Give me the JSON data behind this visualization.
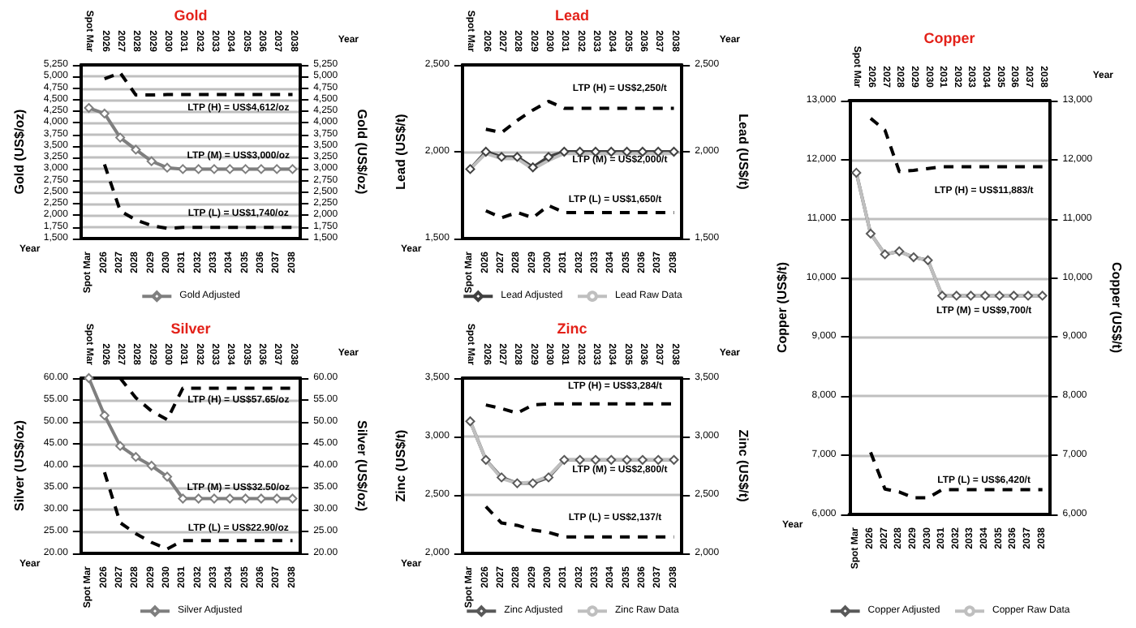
{
  "chart_data": [
    {
      "type": "line",
      "title": "Gold",
      "xlabel": "Year",
      "ylabel": "Gold (US$/oz)",
      "y2label": "Gold (US$/oz)",
      "categories": [
        "Spot Mar",
        "2026",
        "2027",
        "2028",
        "2029",
        "2030",
        "2031",
        "2032",
        "2033",
        "2034",
        "2035",
        "2036",
        "2037",
        "2038"
      ],
      "series": [
        {
          "name": "Gold Adjusted",
          "color": "#7f7f7f",
          "marker": "diamond",
          "line_style": "solid",
          "values": [
            4320,
            4200,
            3680,
            3420,
            3170,
            3030,
            3000,
            3000,
            3000,
            3000,
            3000,
            3000,
            3000,
            3000
          ]
        },
        {
          "color": "#000000",
          "marker": "none",
          "line_style": "dashed",
          "values": [
            null,
            4950,
            5080,
            4600,
            4600,
            4610,
            4610,
            4610,
            4610,
            4610,
            4610,
            4610,
            4610,
            4610
          ]
        },
        {
          "color": "#000000",
          "marker": "none",
          "line_style": "dashed",
          "values": [
            null,
            3100,
            2100,
            1900,
            1780,
            1720,
            1740,
            1740,
            1740,
            1740,
            1740,
            1740,
            1740,
            1740
          ]
        }
      ],
      "ylim": [
        1500,
        5250
      ],
      "yticks": [
        {
          "value": 1500,
          "label": "1,500"
        },
        {
          "value": 1750,
          "label": "1,750"
        },
        {
          "value": 2000,
          "label": "2,000"
        },
        {
          "value": 2250,
          "label": "2,250"
        },
        {
          "value": 2500,
          "label": "2,500"
        },
        {
          "value": 2750,
          "label": "2,750"
        },
        {
          "value": 3000,
          "label": "3,000"
        },
        {
          "value": 3250,
          "label": "3,250"
        },
        {
          "value": 3500,
          "label": "3,500"
        },
        {
          "value": 3750,
          "label": "3,750"
        },
        {
          "value": 4000,
          "label": "4,000"
        },
        {
          "value": 4250,
          "label": "4,250"
        },
        {
          "value": 4500,
          "label": "4,500"
        },
        {
          "value": 4750,
          "label": "4,750"
        },
        {
          "value": 5000,
          "label": "5,000"
        },
        {
          "value": 5250,
          "label": "5,250"
        }
      ],
      "y2lim": [
        1500,
        5250
      ],
      "y2ticks": [
        {
          "value": 1500,
          "label": "1,500"
        },
        {
          "value": 1750,
          "label": "1,750"
        },
        {
          "value": 2000,
          "label": "2,000"
        },
        {
          "value": 2250,
          "label": "2,250"
        },
        {
          "value": 2500,
          "label": "2,500"
        },
        {
          "value": 2750,
          "label": "2,750"
        },
        {
          "value": 3000,
          "label": "3,000"
        },
        {
          "value": 3250,
          "label": "3,250"
        },
        {
          "value": 3500,
          "label": "3,500"
        },
        {
          "value": 3750,
          "label": "3,750"
        },
        {
          "value": 4000,
          "label": "4,000"
        },
        {
          "value": 4250,
          "label": "4,250"
        },
        {
          "value": 4500,
          "label": "4,500"
        },
        {
          "value": 4750,
          "label": "4,750"
        },
        {
          "value": 5000,
          "label": "5,000"
        },
        {
          "value": 5250,
          "label": "5,250"
        }
      ],
      "annotations": [
        "LTP (H) = US$4,612/oz",
        "LTP (M) = US$3,000/oz",
        "LTP (L) = US$1,740/oz"
      ],
      "grid": "y",
      "legend": "bottom"
    },
    {
      "type": "line",
      "title": "Lead",
      "xlabel": "Year",
      "ylabel": "Lead (US$/t)",
      "y2label": "Lead (US$/t)",
      "categories": [
        "Spot Mar",
        "2026",
        "2027",
        "2028",
        "2029",
        "2030",
        "2031",
        "2032",
        "2033",
        "2034",
        "2035",
        "2036",
        "2037",
        "2038"
      ],
      "series": [
        {
          "name": "Lead Adjusted",
          "color": "#404040",
          "marker": "diamond",
          "line_style": "solid",
          "values": [
            1900,
            2000,
            1970,
            1970,
            1910,
            1970,
            2000,
            2000,
            2000,
            2000,
            2000,
            2000,
            2000,
            2000
          ]
        },
        {
          "name": "Lead Raw Data",
          "color": "#bfbfbf",
          "marker": "none",
          "line_style": "solid",
          "values": [
            1900,
            1990,
            1960,
            1960,
            1900,
            1950,
            1990,
            1990,
            1990,
            1990,
            1990,
            1990,
            1990,
            1990
          ]
        },
        {
          "color": "#000000",
          "marker": "none",
          "line_style": "dashed",
          "values": [
            null,
            2130,
            2110,
            2180,
            2240,
            2290,
            2250,
            2250,
            2250,
            2250,
            2250,
            2250,
            2250,
            2250
          ]
        },
        {
          "color": "#000000",
          "marker": "none",
          "line_style": "dashed",
          "values": [
            null,
            1660,
            1620,
            1650,
            1620,
            1690,
            1650,
            1650,
            1650,
            1650,
            1650,
            1650,
            1650,
            1650
          ]
        }
      ],
      "ylim": [
        1500,
        2500
      ],
      "yticks": [
        {
          "value": 1500,
          "label": "1,500"
        },
        {
          "value": 2000,
          "label": "2,000"
        },
        {
          "value": 2500,
          "label": "2,500"
        }
      ],
      "y2lim": [
        1500,
        2500
      ],
      "y2ticks": [
        {
          "value": 1500,
          "label": "1,500"
        },
        {
          "value": 2000,
          "label": "2,000"
        },
        {
          "value": 2500,
          "label": "2,500"
        }
      ],
      "annotations": [
        "LTP (H) = US$2,250/t",
        "LTP (M) = US$2,000/t",
        "LTP (L) = US$1,650/t"
      ],
      "grid": "y",
      "legend": "bottom"
    },
    {
      "type": "line",
      "title": "Copper",
      "xlabel": "Year",
      "ylabel": "Copper (US$/t)",
      "y2label": "Copper (US$/t)",
      "categories": [
        "Spot Mar",
        "2026",
        "2027",
        "2028",
        "2029",
        "2030",
        "2031",
        "2032",
        "2033",
        "2034",
        "2035",
        "2036",
        "2037",
        "2038"
      ],
      "series": [
        {
          "name": "Copper Adjusted",
          "color": "#595959",
          "marker": "diamond",
          "line_style": "solid",
          "values": [
            11780,
            10750,
            10400,
            10450,
            10350,
            10300,
            9700,
            9700,
            9700,
            9700,
            9700,
            9700,
            9700,
            9700
          ]
        },
        {
          "name": "Copper Raw Data",
          "color": "#bfbfbf",
          "marker": "none",
          "line_style": "solid",
          "values": [
            11780,
            10750,
            10400,
            10450,
            10350,
            10300,
            9700,
            9700,
            9700,
            9700,
            9700,
            9700,
            9700,
            9700
          ]
        },
        {
          "color": "#000000",
          "marker": "none",
          "line_style": "dashed",
          "values": [
            null,
            12700,
            12500,
            11800,
            11820,
            11850,
            11880,
            11880,
            11880,
            11880,
            11880,
            11880,
            11880,
            11880
          ]
        },
        {
          "color": "#000000",
          "marker": "none",
          "line_style": "dashed",
          "values": [
            null,
            7050,
            6430,
            6380,
            6280,
            6280,
            6420,
            6420,
            6420,
            6420,
            6420,
            6420,
            6420,
            6420
          ]
        }
      ],
      "ylim": [
        6000,
        13000
      ],
      "yticks": [
        {
          "value": 6000,
          "label": "6,000"
        },
        {
          "value": 7000,
          "label": "7,000"
        },
        {
          "value": 8000,
          "label": "8,000"
        },
        {
          "value": 9000,
          "label": "9,000"
        },
        {
          "value": 10000,
          "label": "10,000"
        },
        {
          "value": 11000,
          "label": "11,000"
        },
        {
          "value": 12000,
          "label": "12,000"
        },
        {
          "value": 13000,
          "label": "13,000"
        }
      ],
      "y2lim": [
        6000,
        13000
      ],
      "y2ticks": [
        {
          "value": 6000,
          "label": "6,000"
        },
        {
          "value": 7000,
          "label": "7,000"
        },
        {
          "value": 8000,
          "label": "8,000"
        },
        {
          "value": 9000,
          "label": "9,000"
        },
        {
          "value": 10000,
          "label": "10,000"
        },
        {
          "value": 11000,
          "label": "11,000"
        },
        {
          "value": 12000,
          "label": "12,000"
        },
        {
          "value": 13000,
          "label": "13,000"
        }
      ],
      "annotations": [
        "LTP (H) = US$11,883/t",
        "LTP (M) = US$9,700/t",
        "LTP (L) = US$6,420/t"
      ],
      "grid": "y",
      "legend": "bottom"
    },
    {
      "type": "line",
      "title": "Silver",
      "xlabel": "Year",
      "ylabel": "Silver (US$/oz)",
      "y2label": "Silver (US$/oz)",
      "categories": [
        "Spot Mar",
        "2026",
        "2027",
        "2028",
        "2029",
        "2030",
        "2031",
        "2032",
        "2033",
        "2034",
        "2035",
        "2036",
        "2037",
        "2038"
      ],
      "series": [
        {
          "name": "Silver Adjusted",
          "color": "#7f7f7f",
          "marker": "diamond",
          "line_style": "solid",
          "values": [
            60,
            51.5,
            44.5,
            42,
            40,
            37.5,
            32.5,
            32.5,
            32.5,
            32.5,
            32.5,
            32.5,
            32.5,
            32.5
          ]
        },
        {
          "color": "#000000",
          "marker": "none",
          "line_style": "dashed",
          "values": [
            null,
            null,
            60,
            55.5,
            52.5,
            50.5,
            57.7,
            57.7,
            57.7,
            57.7,
            57.7,
            57.7,
            57.7,
            57.7
          ]
        },
        {
          "color": "#000000",
          "marker": "none",
          "line_style": "dashed",
          "values": [
            null,
            38.5,
            27,
            24.5,
            22.5,
            21,
            22.9,
            22.9,
            22.9,
            22.9,
            22.9,
            22.9,
            22.9,
            22.9
          ]
        }
      ],
      "ylim": [
        20,
        60
      ],
      "yticks": [
        {
          "value": 20,
          "label": "20.00"
        },
        {
          "value": 25,
          "label": "25.00"
        },
        {
          "value": 30,
          "label": "30.00"
        },
        {
          "value": 35,
          "label": "35.00"
        },
        {
          "value": 40,
          "label": "40.00"
        },
        {
          "value": 45,
          "label": "45.00"
        },
        {
          "value": 50,
          "label": "50.00"
        },
        {
          "value": 55,
          "label": "55.00"
        },
        {
          "value": 60,
          "label": "60.00"
        }
      ],
      "y2lim": [
        20,
        60
      ],
      "y2ticks": [
        {
          "value": 20,
          "label": "20.00"
        },
        {
          "value": 25,
          "label": "25.00"
        },
        {
          "value": 30,
          "label": "30.00"
        },
        {
          "value": 35,
          "label": "35.00"
        },
        {
          "value": 40,
          "label": "40.00"
        },
        {
          "value": 45,
          "label": "45.00"
        },
        {
          "value": 50,
          "label": "50.00"
        },
        {
          "value": 55,
          "label": "55.00"
        },
        {
          "value": 60,
          "label": "60.00"
        }
      ],
      "annotations": [
        "LTP (H) = US$57.65/oz",
        "LTP (M) = US$32.50/oz",
        "LTP (L) = US$22.90/oz"
      ],
      "grid": "y",
      "legend": "bottom"
    },
    {
      "type": "line",
      "title": "Zinc",
      "xlabel": "Year",
      "ylabel": "Zinc (US$/t)",
      "y2label": "Zinc (US$/t)",
      "categories": [
        "Spot Mar",
        "2026",
        "2027",
        "2028",
        "2029",
        "2030",
        "2031",
        "2032",
        "2033",
        "2034",
        "2035",
        "2036",
        "2037",
        "2038"
      ],
      "series": [
        {
          "name": "Zinc Adjusted",
          "color": "#595959",
          "marker": "diamond",
          "line_style": "solid",
          "values": [
            3130,
            2800,
            2650,
            2600,
            2600,
            2650,
            2800,
            2800,
            2800,
            2800,
            2800,
            2800,
            2800,
            2800
          ]
        },
        {
          "name": "Zinc Raw Data",
          "color": "#bfbfbf",
          "marker": "none",
          "line_style": "solid",
          "values": [
            3130,
            2800,
            2640,
            2600,
            2610,
            2660,
            2800,
            2800,
            2800,
            2800,
            2800,
            2800,
            2800,
            2800
          ]
        },
        {
          "color": "#000000",
          "marker": "none",
          "line_style": "dashed",
          "values": [
            null,
            3270,
            3240,
            3200,
            3270,
            3280,
            3280,
            3280,
            3280,
            3280,
            3280,
            3280,
            3280,
            3280
          ]
        },
        {
          "color": "#000000",
          "marker": "none",
          "line_style": "dashed",
          "values": [
            null,
            2400,
            2260,
            2240,
            2200,
            2180,
            2140,
            2140,
            2140,
            2140,
            2140,
            2140,
            2140,
            2140
          ]
        }
      ],
      "ylim": [
        2000,
        3500
      ],
      "yticks": [
        {
          "value": 2000,
          "label": "2,000"
        },
        {
          "value": 2500,
          "label": "2,500"
        },
        {
          "value": 3000,
          "label": "3,000"
        },
        {
          "value": 3500,
          "label": "3,500"
        }
      ],
      "y2lim": [
        2000,
        3500
      ],
      "y2ticks": [
        {
          "value": 2000,
          "label": "2,000"
        },
        {
          "value": 2500,
          "label": "2,500"
        },
        {
          "value": 3000,
          "label": "3,000"
        },
        {
          "value": 3500,
          "label": "3,500"
        }
      ],
      "annotations": [
        "LTP (H) = US$3,284/t",
        "LTP (M) = US$2,800/t",
        "LTP (L) = US$2,137/t"
      ],
      "grid": "y",
      "legend": "bottom"
    }
  ]
}
